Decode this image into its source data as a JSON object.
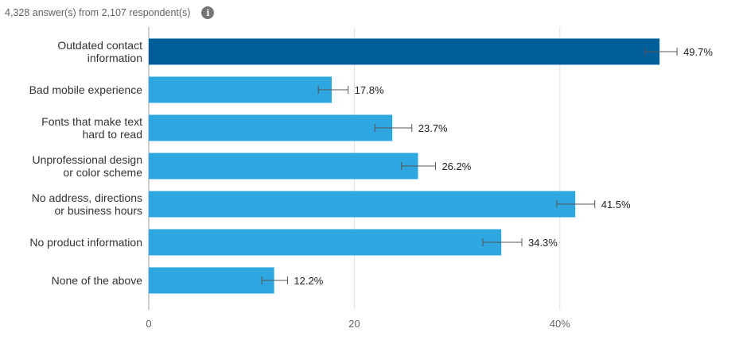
{
  "header": {
    "summary": "4,328 answer(s) from 2,107 respondent(s)",
    "info_icon": "info-icon"
  },
  "colors": {
    "bar": "#2ea6e0",
    "bar_highlight": "#005f9a",
    "gridline": "#e0e0e0",
    "axis": "#9e9e9e",
    "error_bar": "#555555"
  },
  "chart_data": {
    "type": "bar",
    "orientation": "horizontal",
    "categories": [
      [
        "Outdated contact",
        "information"
      ],
      [
        "Bad mobile experience"
      ],
      [
        "Fonts that make text",
        "hard to read"
      ],
      [
        "Unprofessional design",
        "or color scheme"
      ],
      [
        "No address, directions",
        "or business hours"
      ],
      [
        "No product information"
      ],
      [
        "None of the above"
      ]
    ],
    "values": [
      49.7,
      17.8,
      23.7,
      26.2,
      41.5,
      34.3,
      12.2
    ],
    "value_labels": [
      "49.7%",
      "17.8%",
      "23.7%",
      "26.2%",
      "41.5%",
      "34.3%",
      "12.2%"
    ],
    "error_low": [
      48.3,
      16.5,
      22.0,
      24.6,
      39.7,
      32.5,
      11.0
    ],
    "error_high": [
      51.4,
      19.4,
      25.6,
      27.9,
      43.4,
      36.3,
      13.5
    ],
    "highlight_index": 0,
    "xlim": [
      0,
      55
    ],
    "ticks": [
      0,
      20,
      40
    ],
    "tick_labels": [
      "0",
      "20",
      "40%"
    ],
    "grid": true,
    "legend": "none"
  }
}
